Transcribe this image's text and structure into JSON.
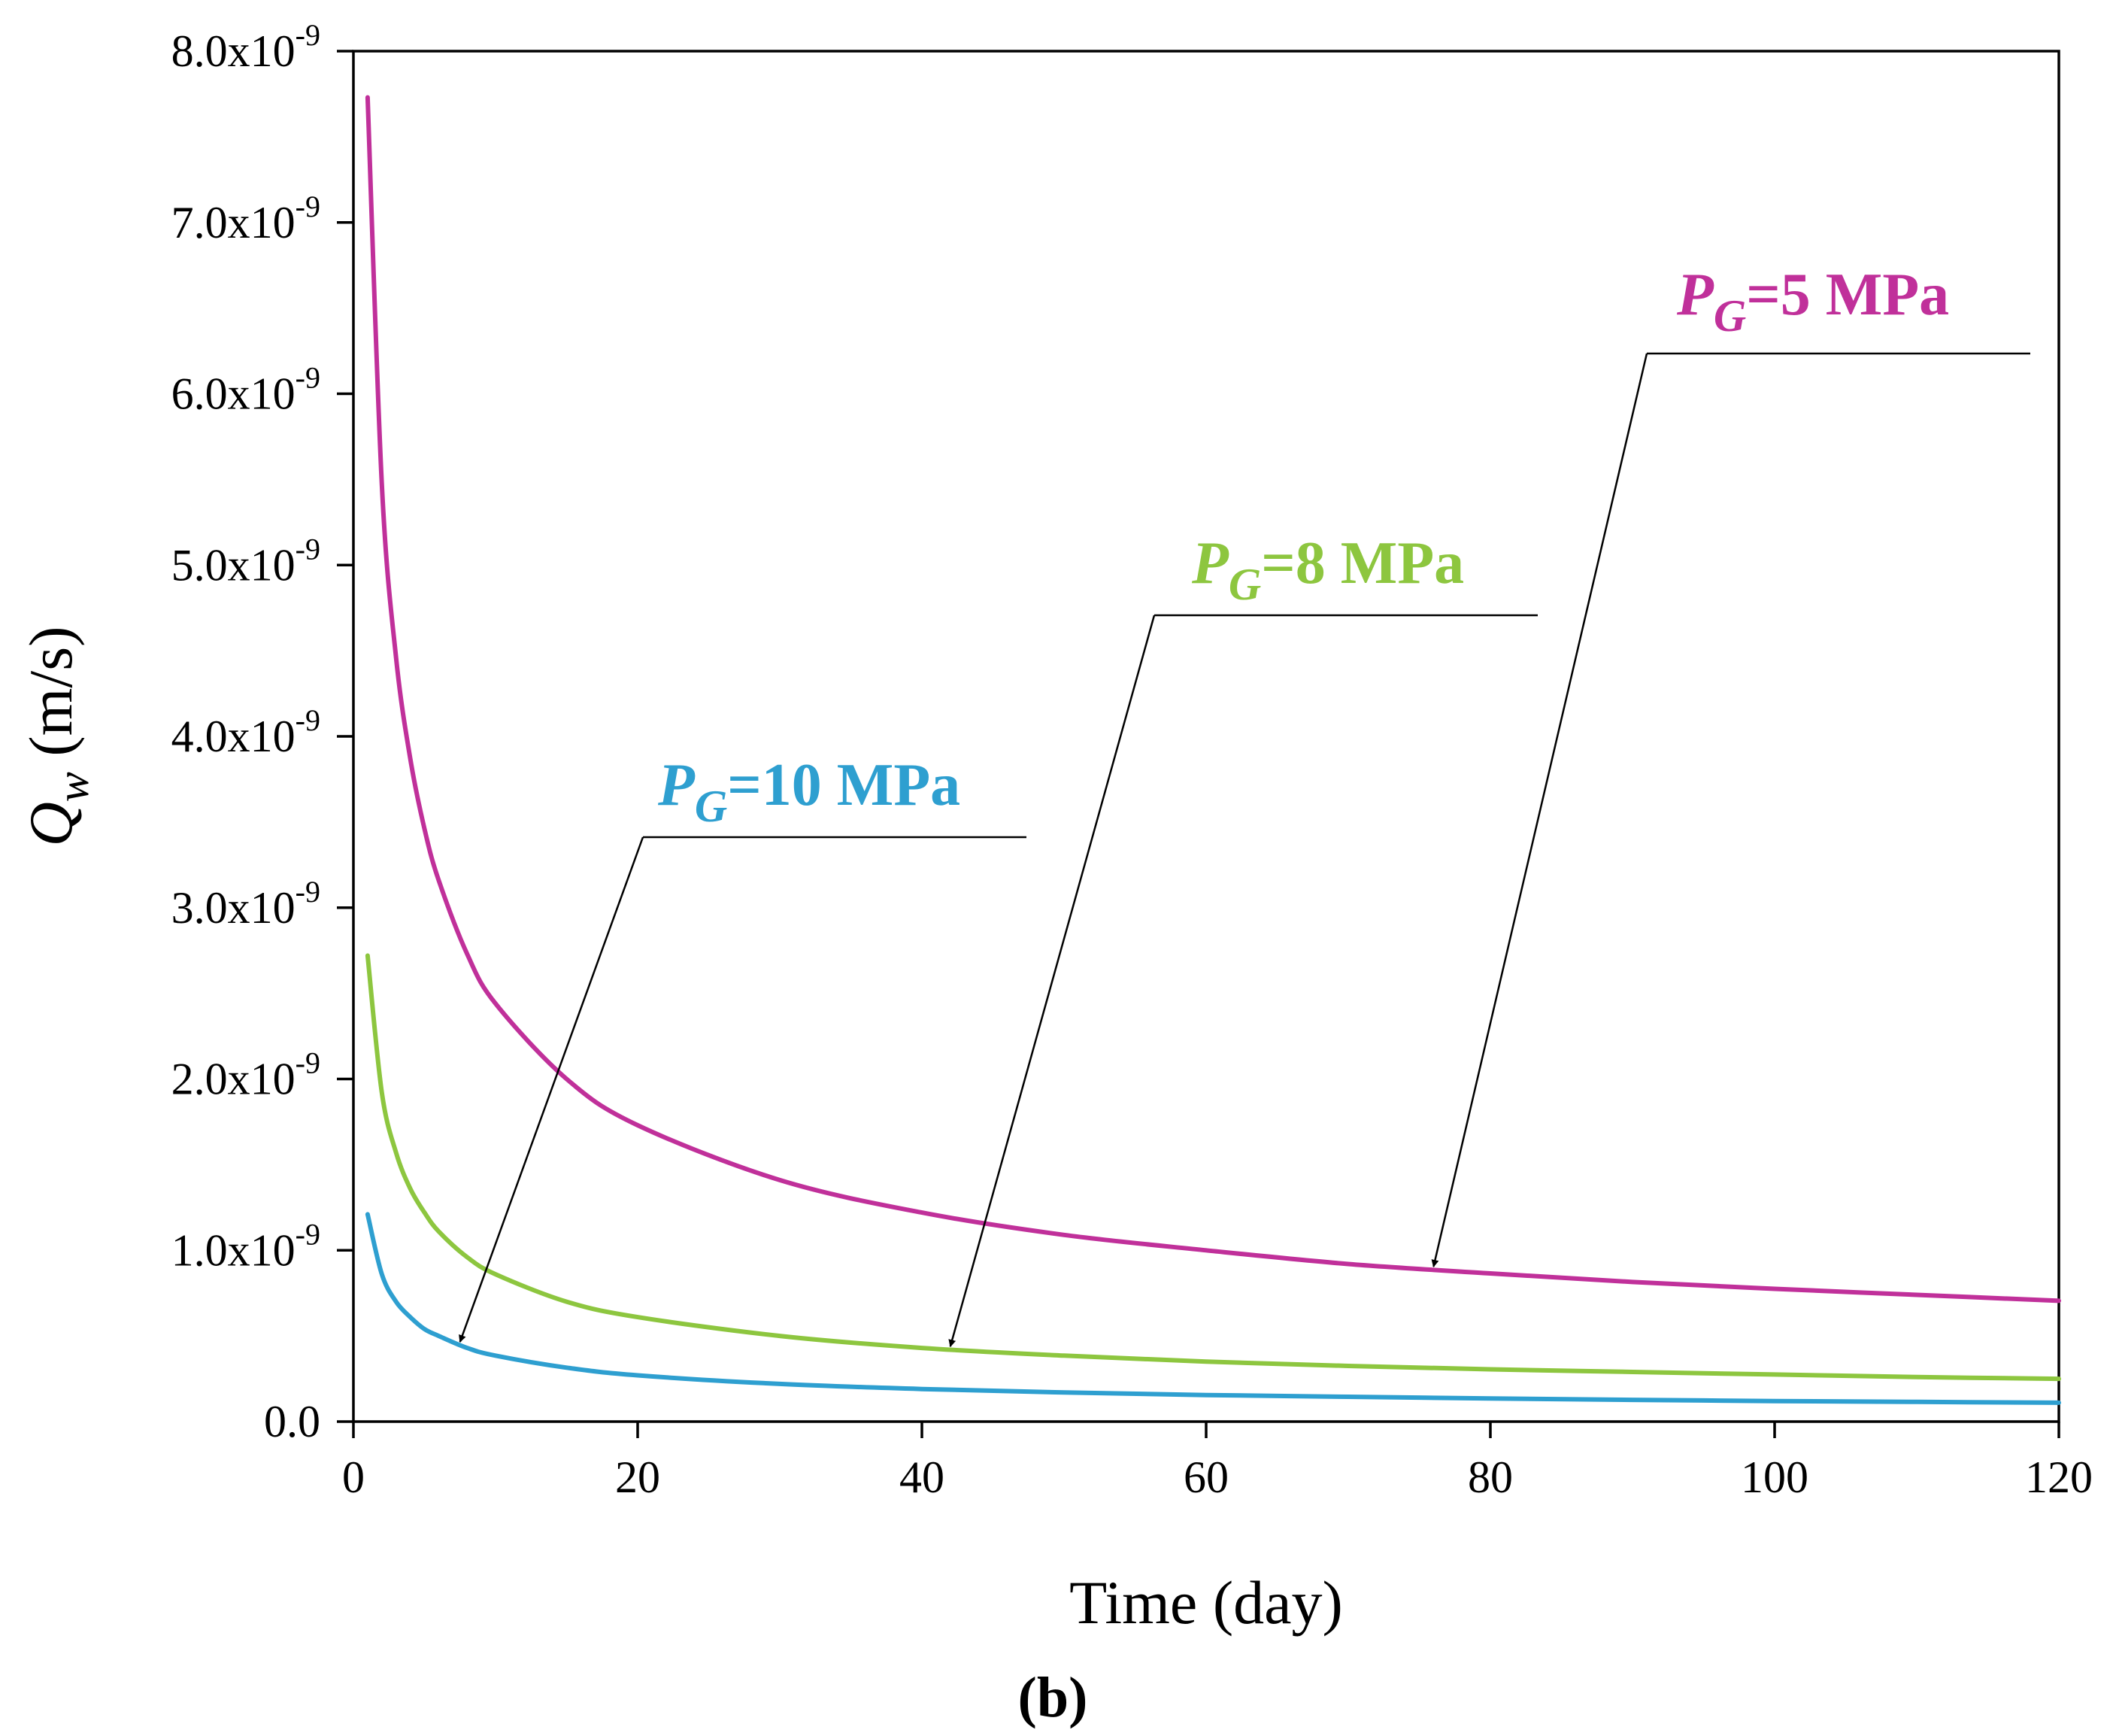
{
  "chart_data": {
    "type": "line",
    "title": "",
    "panel_label": "(b)",
    "xlabel": "Time (day)",
    "ylabel": {
      "symbol": "Q",
      "subscript": "w",
      "unit": " (m/s)"
    },
    "xlim": [
      0,
      120
    ],
    "ylim": [
      0,
      8e-09
    ],
    "xticks": [
      {
        "value": 0,
        "label": "0"
      },
      {
        "value": 20,
        "label": "20"
      },
      {
        "value": 40,
        "label": "40"
      },
      {
        "value": 60,
        "label": "60"
      },
      {
        "value": 80,
        "label": "80"
      },
      {
        "value": 100,
        "label": "100"
      },
      {
        "value": 120,
        "label": "120"
      }
    ],
    "yticks": [
      {
        "value": 0,
        "label": "0.0",
        "exp": ""
      },
      {
        "value": 1e-09,
        "label": "1.0x10",
        "exp": "-9"
      },
      {
        "value": 2e-09,
        "label": "2.0x10",
        "exp": "-9"
      },
      {
        "value": 3e-09,
        "label": "3.0x10",
        "exp": "-9"
      },
      {
        "value": 4e-09,
        "label": "4.0x10",
        "exp": "-9"
      },
      {
        "value": 5e-09,
        "label": "5.0x10",
        "exp": "-9"
      },
      {
        "value": 6e-09,
        "label": "6.0x10",
        "exp": "-9"
      },
      {
        "value": 7e-09,
        "label": "7.0x10",
        "exp": "-9"
      },
      {
        "value": 8e-09,
        "label": "8.0x10",
        "exp": "-9"
      }
    ],
    "grid": false,
    "series": [
      {
        "name": "PG=5 MPa",
        "label_sym": "P",
        "label_sub": "G",
        "label_rest": "=5 MPa",
        "color": "#c0309a",
        "arrow_to": 76,
        "x": [
          1,
          2,
          3,
          4,
          5,
          6,
          8,
          10,
          15,
          20,
          30,
          40,
          50,
          60,
          70,
          80,
          90,
          100,
          110,
          120
        ],
        "values": [
          7.73e-09,
          5.47e-09,
          4.46e-09,
          3.87e-09,
          3.46e-09,
          3.16e-09,
          2.73e-09,
          2.44e-09,
          2e-09,
          1.73e-09,
          1.41e-09,
          1.22e-09,
          1.09e-09,
          1e-09,
          9.2e-10,
          8.65e-10,
          8.15e-10,
          7.75e-10,
          7.4e-10,
          7.05e-10
        ]
      },
      {
        "name": "PG=8 MPa",
        "label_sym": "P",
        "label_sub": "G",
        "label_rest": "=8 MPa",
        "color": "#8dc63f",
        "arrow_to": 42,
        "x": [
          1,
          2,
          3,
          4,
          5,
          6,
          8,
          10,
          15,
          20,
          30,
          40,
          50,
          60,
          70,
          80,
          90,
          100,
          110,
          120
        ],
        "values": [
          2.72e-09,
          1.92e-09,
          1.57e-09,
          1.36e-09,
          1.22e-09,
          1.11e-09,
          9.6e-10,
          8.6e-10,
          7e-10,
          6.1e-10,
          5e-10,
          4.3e-10,
          3.85e-10,
          3.5e-10,
          3.25e-10,
          3.05e-10,
          2.9e-10,
          2.75e-10,
          2.6e-10,
          2.5e-10
        ]
      },
      {
        "name": "PG=10 MPa",
        "label_sym": "P",
        "label_sub": "G",
        "label_rest": "=10 MPa",
        "color": "#2e9fd0",
        "arrow_to": 7.5,
        "x": [
          1,
          2,
          3,
          4,
          5,
          6,
          8,
          10,
          15,
          20,
          30,
          40,
          50,
          60,
          70,
          80,
          90,
          100,
          110,
          120
        ],
        "values": [
          1.21e-09,
          8.6e-10,
          7e-10,
          6.1e-10,
          5.4e-10,
          5e-10,
          4.3e-10,
          3.85e-10,
          3.15e-10,
          2.7e-10,
          2.2e-10,
          1.9e-10,
          1.7e-10,
          1.55e-10,
          1.45e-10,
          1.35e-10,
          1.27e-10,
          1.2e-10,
          1.15e-10,
          1.1e-10
        ]
      }
    ]
  }
}
